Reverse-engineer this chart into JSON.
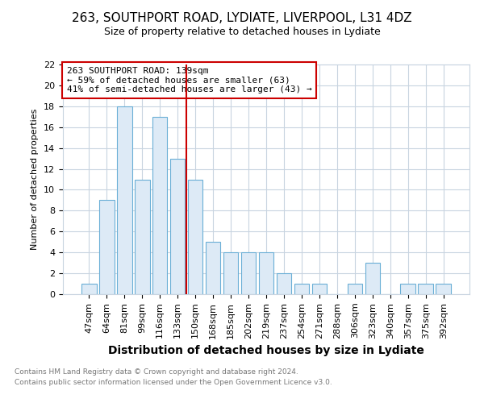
{
  "title1": "263, SOUTHPORT ROAD, LYDIATE, LIVERPOOL, L31 4DZ",
  "title2": "Size of property relative to detached houses in Lydiate",
  "xlabel": "Distribution of detached houses by size in Lydiate",
  "ylabel": "Number of detached properties",
  "categories": [
    "47sqm",
    "64sqm",
    "81sqm",
    "99sqm",
    "116sqm",
    "133sqm",
    "150sqm",
    "168sqm",
    "185sqm",
    "202sqm",
    "219sqm",
    "237sqm",
    "254sqm",
    "271sqm",
    "288sqm",
    "306sqm",
    "323sqm",
    "340sqm",
    "357sqm",
    "375sqm",
    "392sqm"
  ],
  "values": [
    1,
    9,
    18,
    11,
    17,
    13,
    11,
    5,
    4,
    4,
    4,
    2,
    1,
    1,
    0,
    1,
    3,
    0,
    1,
    1,
    1
  ],
  "bar_color": "#ddeaf6",
  "bar_edge_color": "#6aafd6",
  "grid_color": "#c8d4e0",
  "property_line_x": 5.5,
  "annotation_text": "263 SOUTHPORT ROAD: 139sqm\n← 59% of detached houses are smaller (63)\n41% of semi-detached houses are larger (43) →",
  "annotation_box_color": "#ffffff",
  "annotation_box_edge": "#cc0000",
  "vline_color": "#cc0000",
  "footer1": "Contains HM Land Registry data © Crown copyright and database right 2024.",
  "footer2": "Contains public sector information licensed under the Open Government Licence v3.0.",
  "ylim": [
    0,
    22
  ],
  "yticks": [
    0,
    2,
    4,
    6,
    8,
    10,
    12,
    14,
    16,
    18,
    20,
    22
  ],
  "bg_color": "#ffffff",
  "title1_fontsize": 11,
  "title2_fontsize": 9,
  "xlabel_fontsize": 10,
  "ylabel_fontsize": 8,
  "tick_fontsize": 8,
  "annotation_fontsize": 8,
  "footer_fontsize": 6.5,
  "footer_color": "#777777"
}
